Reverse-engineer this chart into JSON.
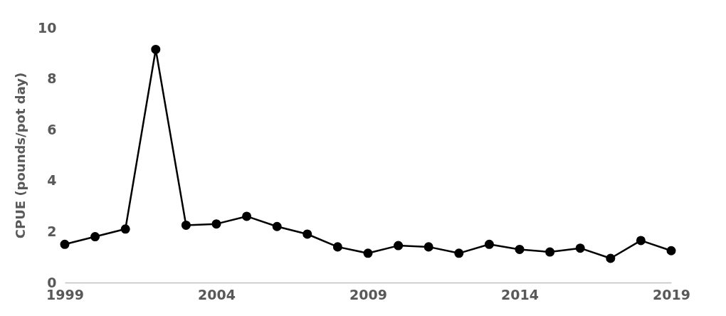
{
  "chart_data": {
    "type": "line",
    "ylabel": "CPUE (pounds/pot day)",
    "x": [
      1999,
      2000,
      2001,
      2002,
      2003,
      2004,
      2005,
      2006,
      2007,
      2008,
      2009,
      2010,
      2011,
      2012,
      2013,
      2014,
      2015,
      2016,
      2017,
      2018,
      2019
    ],
    "series": [
      {
        "color": "#000000",
        "values": [
          1.5,
          1.8,
          2.1,
          9.15,
          2.25,
          2.3,
          2.6,
          2.2,
          1.9,
          1.4,
          1.15,
          1.45,
          1.4,
          1.15,
          1.5,
          1.3,
          1.2,
          1.35,
          0.95,
          1.65,
          1.25
        ]
      }
    ],
    "xlim": [
      1999,
      2019
    ],
    "xticks": [
      1999,
      2004,
      2009,
      2014,
      2019
    ],
    "ylim": [
      0,
      10
    ],
    "yticks": [
      0,
      2,
      4,
      6,
      8,
      10
    ],
    "grid": false,
    "legend": false,
    "marker": "circle",
    "line_style": "solid"
  }
}
